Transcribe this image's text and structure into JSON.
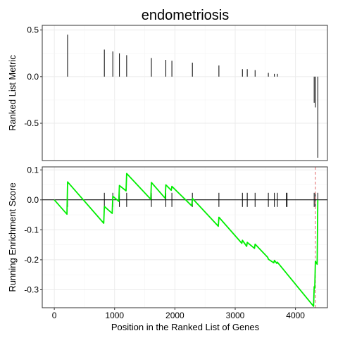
{
  "chart_data": [
    {
      "type": "bar",
      "title": "endometriosis",
      "ylabel": "Ranked List Metric",
      "xlim": [
        -200,
        4530
      ],
      "ylim": [
        -0.9,
        0.55
      ],
      "grid": true,
      "yticks": [
        0.5,
        0.0,
        -0.5
      ],
      "ytick_labels": [
        "0.5",
        "0.0",
        "-0.5"
      ],
      "x": [
        220,
        830,
        970,
        1080,
        1200,
        1610,
        1850,
        1950,
        2290,
        2730,
        3120,
        3200,
        3330,
        3550,
        3650,
        3700,
        4310,
        4330,
        4370
      ],
      "values": [
        0.45,
        0.29,
        0.27,
        0.25,
        0.23,
        0.2,
        0.18,
        0.17,
        0.15,
        0.12,
        0.08,
        0.08,
        0.07,
        0.04,
        0.03,
        0.03,
        -0.28,
        -0.33,
        -0.87
      ]
    },
    {
      "type": "line",
      "xlabel": "Position in the Ranked List of Genes",
      "ylabel": "Running Enrichment Score",
      "xlim": [
        -200,
        4530
      ],
      "ylim": [
        -0.36,
        0.11
      ],
      "grid": true,
      "xticks": [
        0,
        1000,
        2000,
        3000,
        4000
      ],
      "xtick_labels": [
        "0",
        "1000",
        "2000",
        "3000",
        "4000"
      ],
      "yticks": [
        0.1,
        0.0,
        -0.1,
        -0.2,
        -0.3
      ],
      "ytick_labels": [
        "0.1",
        "0.0",
        "-0.1",
        "-0.2",
        "-0.3"
      ],
      "hits": [
        220,
        830,
        970,
        1080,
        1200,
        1610,
        1850,
        1950,
        2290,
        2730,
        3120,
        3200,
        3330,
        3550,
        3650,
        3700,
        3850,
        3860,
        4310,
        4330,
        4370
      ],
      "vline_x": 4330,
      "series": [
        {
          "color": "#00ee00",
          "x": [
            0,
            210,
            220,
            820,
            830,
            960,
            970,
            1070,
            1080,
            1190,
            1200,
            1600,
            1610,
            1840,
            1850,
            1940,
            1950,
            2280,
            2290,
            2720,
            2730,
            3110,
            3120,
            3190,
            3200,
            3320,
            3330,
            3540,
            3550,
            3640,
            3650,
            3690,
            3700,
            4300,
            4310,
            4320,
            4330,
            4360,
            4370
          ],
          "y": [
            0.0,
            -0.048,
            0.06,
            -0.078,
            -0.022,
            -0.045,
            0.012,
            -0.005,
            0.048,
            0.03,
            0.088,
            0.002,
            0.058,
            0.005,
            0.05,
            0.032,
            0.045,
            -0.02,
            0.005,
            -0.088,
            -0.058,
            -0.145,
            -0.135,
            -0.155,
            -0.142,
            -0.162,
            -0.148,
            -0.192,
            -0.198,
            -0.21,
            -0.202,
            -0.212,
            -0.208,
            -0.355,
            -0.29,
            -0.295,
            -0.205,
            -0.215,
            0.0
          ]
        }
      ],
      "vline_color": "#e06666",
      "hit_color": "#000000",
      "zero_line": true
    }
  ]
}
